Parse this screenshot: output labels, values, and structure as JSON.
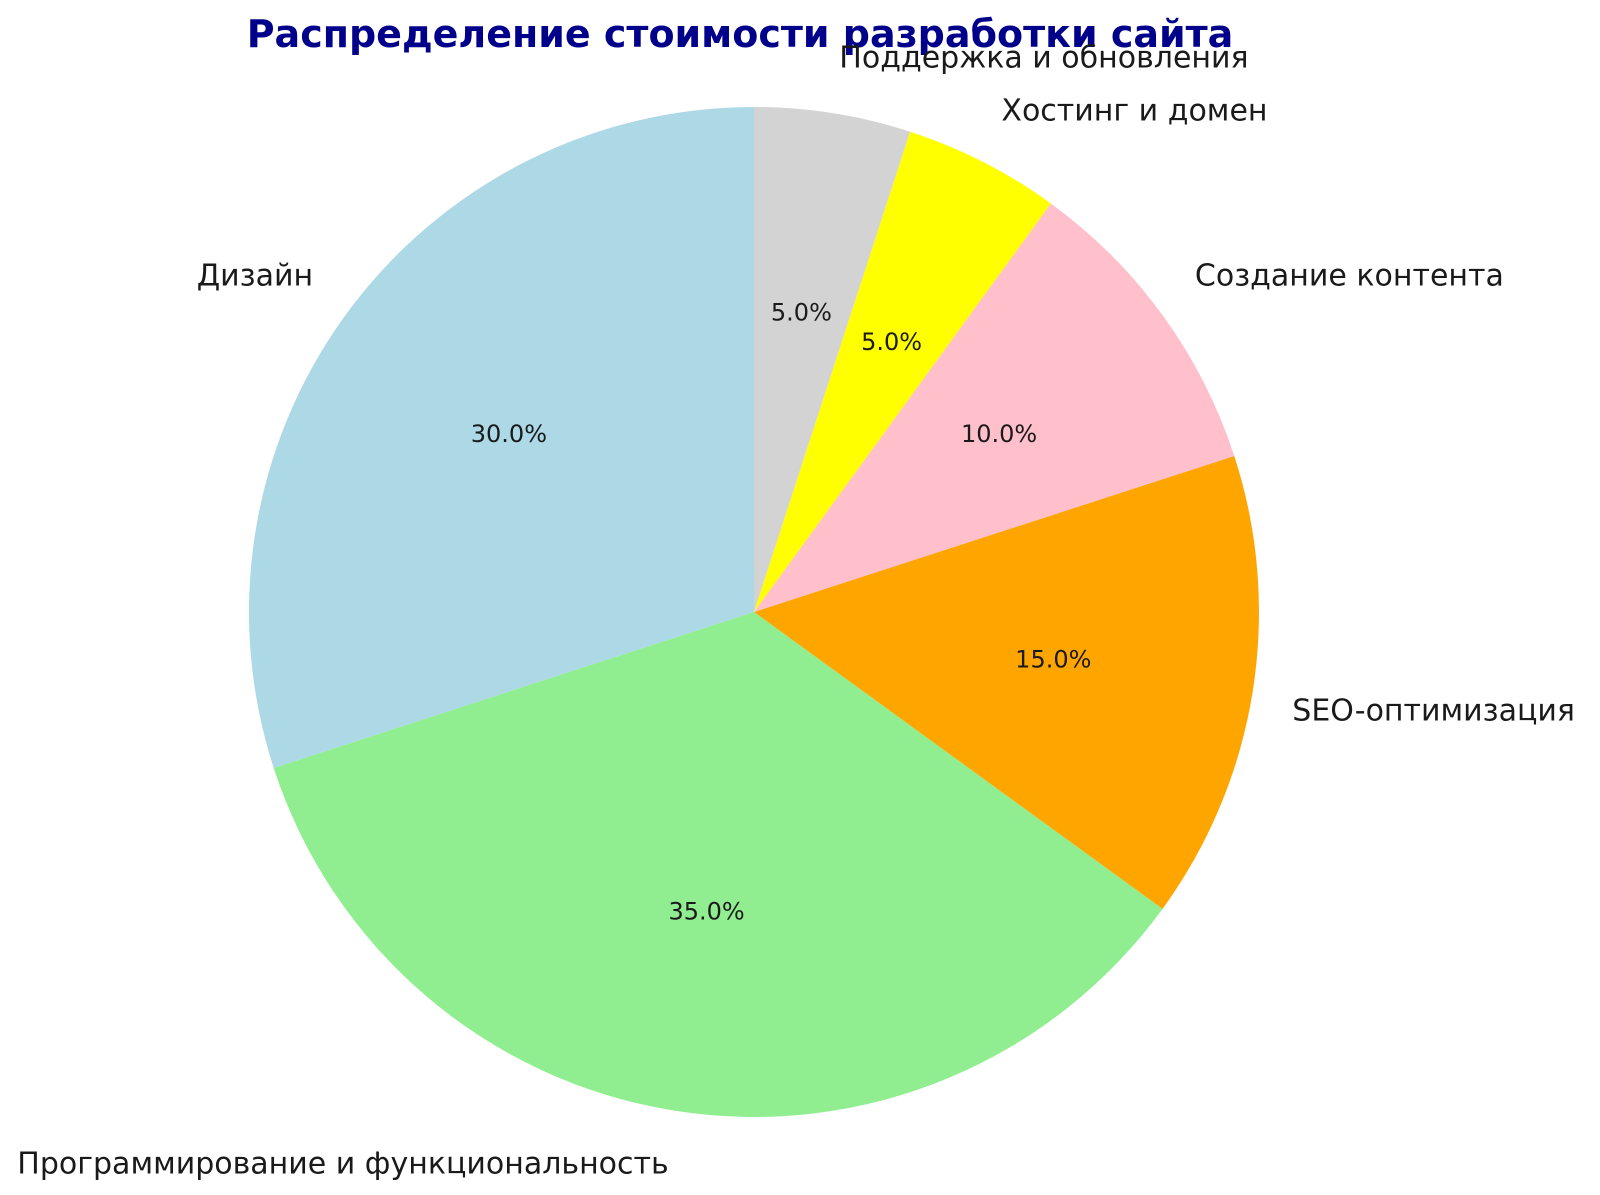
{
  "chart_data": {
    "type": "pie",
    "title": "Распределение стоимости разработки сайта",
    "title_color": "#00008B",
    "label_color": "#1a1a1a",
    "pct_color": "#1a1a1a",
    "background_color": "#ffffff",
    "start_angle": 90,
    "counterclock": true,
    "legend_position": "none",
    "slices": [
      {
        "label": "Дизайн",
        "value": 30.0,
        "pct_label": "30.0%",
        "color": "#ADD8E6"
      },
      {
        "label": "Программирование и функциональность",
        "value": 35.0,
        "pct_label": "35.0%",
        "color": "#90EE90"
      },
      {
        "label": "SEO-оптимизация",
        "value": 15.0,
        "pct_label": "15.0%",
        "color": "#FFA500"
      },
      {
        "label": "Создание контента",
        "value": 10.0,
        "pct_label": "10.0%",
        "color": "#FFC0CB"
      },
      {
        "label": "Хостинг и домен",
        "value": 5.0,
        "pct_label": "5.0%",
        "color": "#FFFF00"
      },
      {
        "label": "Поддержка и обновления",
        "value": 5.0,
        "pct_label": "5.0%",
        "color": "#D3D3D3"
      }
    ]
  }
}
